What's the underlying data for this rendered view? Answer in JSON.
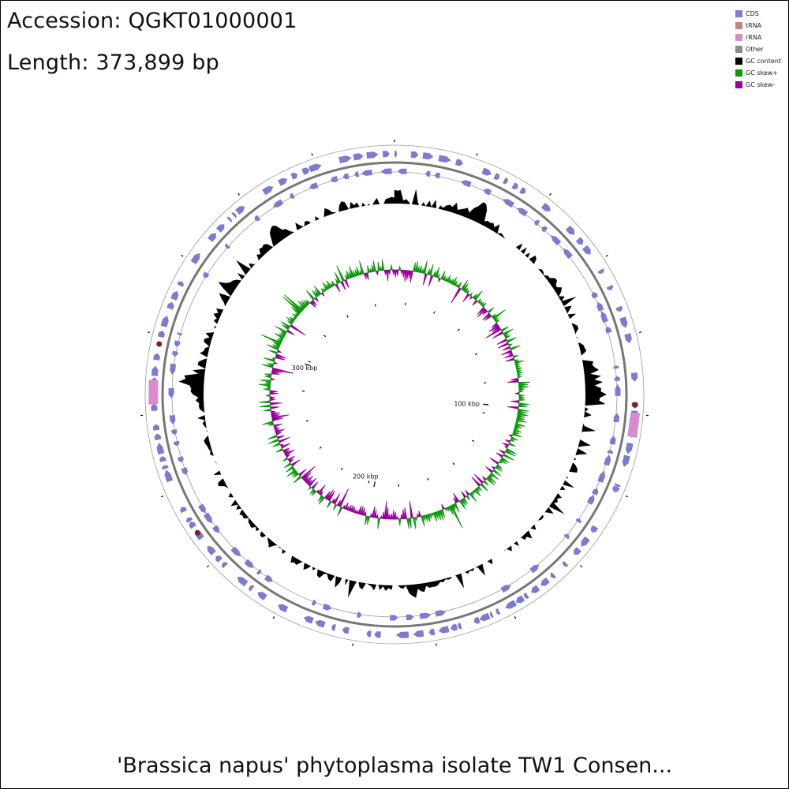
{
  "header": {
    "accession": "Accession: QGKT01000001",
    "length": "Length: 373,899 bp"
  },
  "footer": {
    "title": "'Brassica napus' phytoplasma isolate TW1 Consen..."
  },
  "legend": [
    {
      "label": "CDS",
      "color": "#7b7bcf"
    },
    {
      "label": "tRNA",
      "color": "#c98080"
    },
    {
      "label": "rRNA",
      "color": "#d98bd0"
    },
    {
      "label": "Other",
      "color": "#8c8c8c"
    },
    {
      "label": "GC content",
      "color": "#000000"
    },
    {
      "label": "GC skew+",
      "color": "#0a9a0a"
    },
    {
      "label": "GC skew-",
      "color": "#990099"
    }
  ],
  "map": {
    "genome_length_bp": 373899,
    "tick_labels": [
      {
        "label": "100 kbp",
        "position_bp": 100000
      },
      {
        "label": "200 kbp",
        "position_bp": 200000
      },
      {
        "label": "300 kbp",
        "position_bp": 300000
      }
    ],
    "features": {
      "trna_positions_bp": [
        96000,
        244000,
        293000
      ],
      "rrna_regions_bp": [
        [
          98000,
          104000
        ],
        [
          278000,
          284000
        ]
      ]
    }
  }
}
